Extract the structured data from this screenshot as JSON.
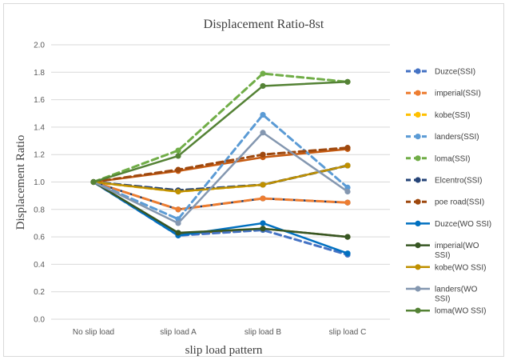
{
  "chart_data": {
    "type": "line",
    "title": "Displacement Ratio-8st",
    "xlabel": "slip load pattern",
    "ylabel": "Displacement Ratio",
    "categories": [
      "No slip  load",
      "slip load A",
      "slip load B",
      "slip load C"
    ],
    "ylim": [
      0,
      2
    ],
    "yticks": [
      "0.0",
      "0.2",
      "0.4",
      "0.6",
      "0.8",
      "1.0",
      "1.2",
      "1.4",
      "1.6",
      "1.8",
      "2.0"
    ],
    "grid": true,
    "legend_position": "right",
    "series": [
      {
        "name": "Duzce(SSI)",
        "values": [
          1.0,
          0.61,
          0.65,
          0.47
        ],
        "color": "#4472c4",
        "dashed": true
      },
      {
        "name": "imperial(SSI)",
        "values": [
          1.0,
          0.8,
          0.88,
          0.85
        ],
        "color": "#ed7d31",
        "dashed": true
      },
      {
        "name": "kobe(SSI)",
        "values": [
          1.0,
          0.93,
          0.98,
          1.12
        ],
        "color": "#ffc000",
        "dashed": true
      },
      {
        "name": "landers(SSI)",
        "values": [
          1.0,
          0.73,
          1.49,
          0.96
        ],
        "color": "#5b9bd5",
        "dashed": true
      },
      {
        "name": "loma(SSI)",
        "values": [
          1.0,
          1.23,
          1.79,
          1.73
        ],
        "color": "#70ad47",
        "dashed": true
      },
      {
        "name": "Elcentro(SSI)",
        "values": [
          1.0,
          0.94,
          0.98,
          1.12
        ],
        "color": "#264478",
        "dashed": true
      },
      {
        "name": "poe road(SSI)",
        "values": [
          1.0,
          1.09,
          1.2,
          1.25
        ],
        "color": "#9e480e",
        "dashed": true
      },
      {
        "name": "Duzce(WO SSI)",
        "values": [
          1.0,
          0.61,
          0.7,
          0.48
        ],
        "color": "#0070c0",
        "dashed": false
      },
      {
        "name": "imperial(WO SSI)",
        "values": [
          1.0,
          0.63,
          0.66,
          0.6
        ],
        "color": "#375623",
        "dashed": false
      },
      {
        "name": "kobe(WO SSI)",
        "values": [
          1.0,
          0.93,
          0.98,
          1.12
        ],
        "color": "#bf9000",
        "dashed": false
      },
      {
        "name": "landers(WO SSI)",
        "values": [
          1.0,
          0.7,
          1.36,
          0.93
        ],
        "color": "#8497b0",
        "dashed": false
      },
      {
        "name": "loma(WO SSI)",
        "values": [
          1.0,
          1.19,
          1.7,
          1.73
        ],
        "color": "#548235",
        "dashed": false
      }
    ],
    "extra_series": [
      {
        "values": [
          1.0,
          1.08,
          1.18,
          1.24
        ],
        "color": "#c55a11",
        "dashed": false
      },
      {
        "values": [
          1.0,
          0.8,
          0.88,
          0.85
        ],
        "color": "#1f3864",
        "dashed": false
      },
      {
        "values": [
          1.0,
          0.62,
          0.66,
          0.6
        ],
        "color": "#7f6000",
        "dashed": false
      }
    ]
  }
}
